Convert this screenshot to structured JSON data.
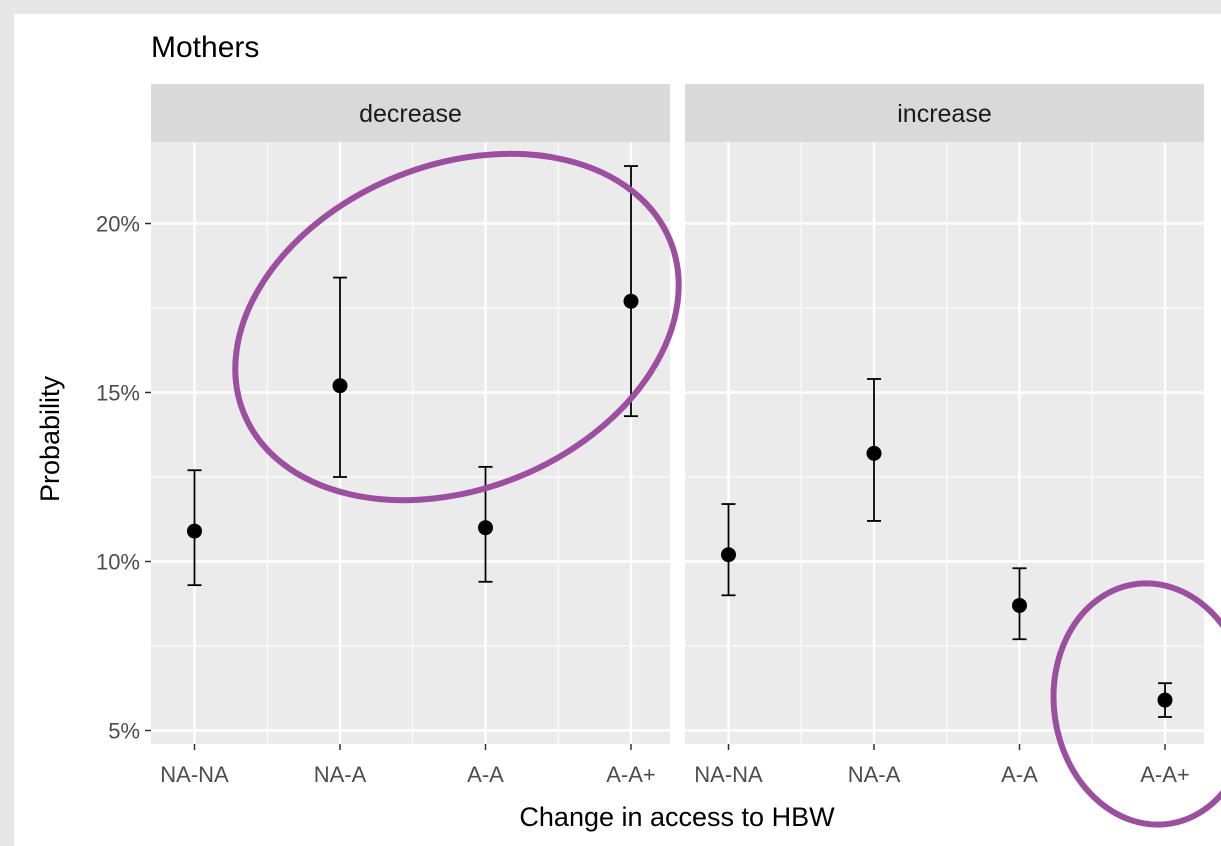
{
  "chart_data": {
    "type": "scatter",
    "title": "Mothers",
    "xlabel": "Change in access to HBW",
    "ylabel": "Probability",
    "categories": [
      "NA-NA",
      "NA-A",
      "A-A",
      "A-A+"
    ],
    "y_ticks": [
      "5%",
      "10%",
      "15%",
      "20%"
    ],
    "y_tick_values": [
      0.05,
      0.1,
      0.15,
      0.2
    ],
    "ylim": [
      0.045,
      0.225
    ],
    "grid": true,
    "panels": [
      {
        "strip": "decrease",
        "points": [
          {
            "x": "NA-NA",
            "y": 0.109,
            "lower": 0.093,
            "upper": 0.127
          },
          {
            "x": "NA-A",
            "y": 0.152,
            "lower": 0.125,
            "upper": 0.184
          },
          {
            "x": "A-A",
            "y": 0.11,
            "lower": 0.094,
            "upper": 0.128
          },
          {
            "x": "A-A+",
            "y": 0.177,
            "lower": 0.143,
            "upper": 0.217
          }
        ]
      },
      {
        "strip": "increase",
        "points": [
          {
            "x": "NA-NA",
            "y": 0.102,
            "lower": 0.09,
            "upper": 0.117
          },
          {
            "x": "NA-A",
            "y": 0.132,
            "lower": 0.112,
            "upper": 0.154
          },
          {
            "x": "A-A",
            "y": 0.087,
            "lower": 0.077,
            "upper": 0.098
          },
          {
            "x": "A-A+",
            "y": 0.059,
            "lower": 0.054,
            "upper": 0.064
          }
        ]
      }
    ],
    "highlights": [
      {
        "panel": "decrease",
        "around": [
          "NA-A",
          "A-A+"
        ],
        "color": "#9b4f9e"
      },
      {
        "panel": "increase",
        "around": [
          "A-A+"
        ],
        "color": "#9b4f9e"
      }
    ],
    "colors": {
      "panel_bg": "#ebebeb",
      "strip_bg": "#d9d9d9",
      "grid": "#ffffff",
      "point": "#000000",
      "highlight": "#9b4f9e"
    }
  }
}
